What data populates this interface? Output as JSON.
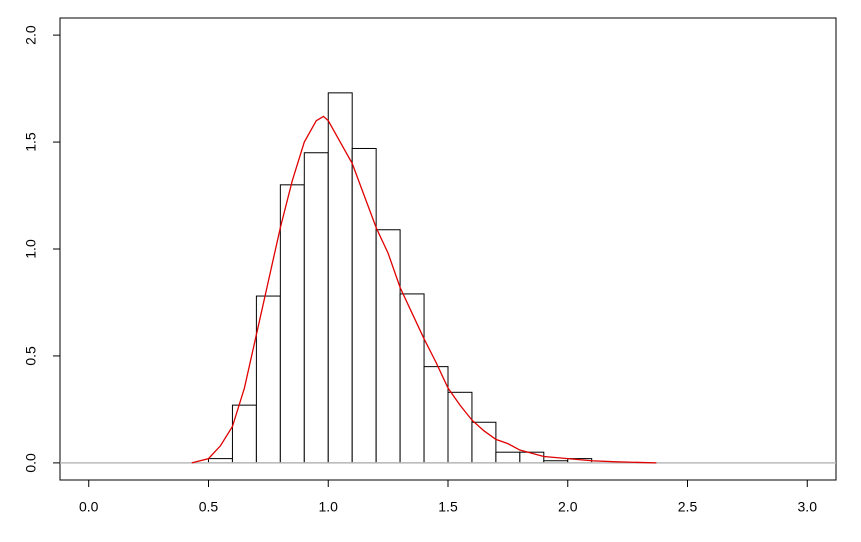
{
  "chart_data": {
    "type": "histogram",
    "bins": [
      0.5,
      0.6,
      0.7,
      0.8,
      0.9,
      1.0,
      1.1,
      1.2,
      1.3,
      1.4,
      1.5,
      1.6,
      1.7,
      1.8,
      1.9,
      2.0,
      2.1
    ],
    "values": [
      0.02,
      0.27,
      0.78,
      1.3,
      1.45,
      1.73,
      1.47,
      1.09,
      0.79,
      0.45,
      0.33,
      0.19,
      0.05,
      0.05,
      0.01,
      0.02
    ],
    "color": "#ffffff",
    "density": {
      "color": "#e00000",
      "x": [
        0.43,
        0.5,
        0.55,
        0.6,
        0.65,
        0.7,
        0.75,
        0.8,
        0.85,
        0.9,
        0.95,
        0.98,
        1.0,
        1.05,
        1.1,
        1.15,
        1.2,
        1.25,
        1.3,
        1.35,
        1.4,
        1.45,
        1.5,
        1.55,
        1.6,
        1.65,
        1.7,
        1.75,
        1.8,
        1.9,
        2.0,
        2.1,
        2.2,
        2.37
      ],
      "values": [
        0,
        0.02,
        0.08,
        0.17,
        0.35,
        0.6,
        0.85,
        1.1,
        1.32,
        1.5,
        1.6,
        1.62,
        1.6,
        1.5,
        1.4,
        1.25,
        1.1,
        0.98,
        0.82,
        0.7,
        0.58,
        0.47,
        0.35,
        0.27,
        0.2,
        0.15,
        0.11,
        0.09,
        0.06,
        0.03,
        0.02,
        0.01,
        0.005,
        0
      ]
    },
    "xlim": [
      -0.12,
      3.12
    ],
    "ylim": [
      -0.08,
      2.08
    ],
    "xticks": [
      {
        "value": 0,
        "label": "0.0"
      },
      0.5,
      {
        "value": 1,
        "label": "1.0"
      },
      1.5,
      {
        "value": 2,
        "label": "2.0"
      },
      2.5,
      {
        "value": 3,
        "label": "3.0"
      }
    ],
    "yticks": [
      {
        "value": 0,
        "label": "0.0"
      },
      0.5,
      {
        "value": 1,
        "label": "1.0"
      },
      1.5,
      {
        "value": 2,
        "label": "2.0"
      }
    ]
  }
}
